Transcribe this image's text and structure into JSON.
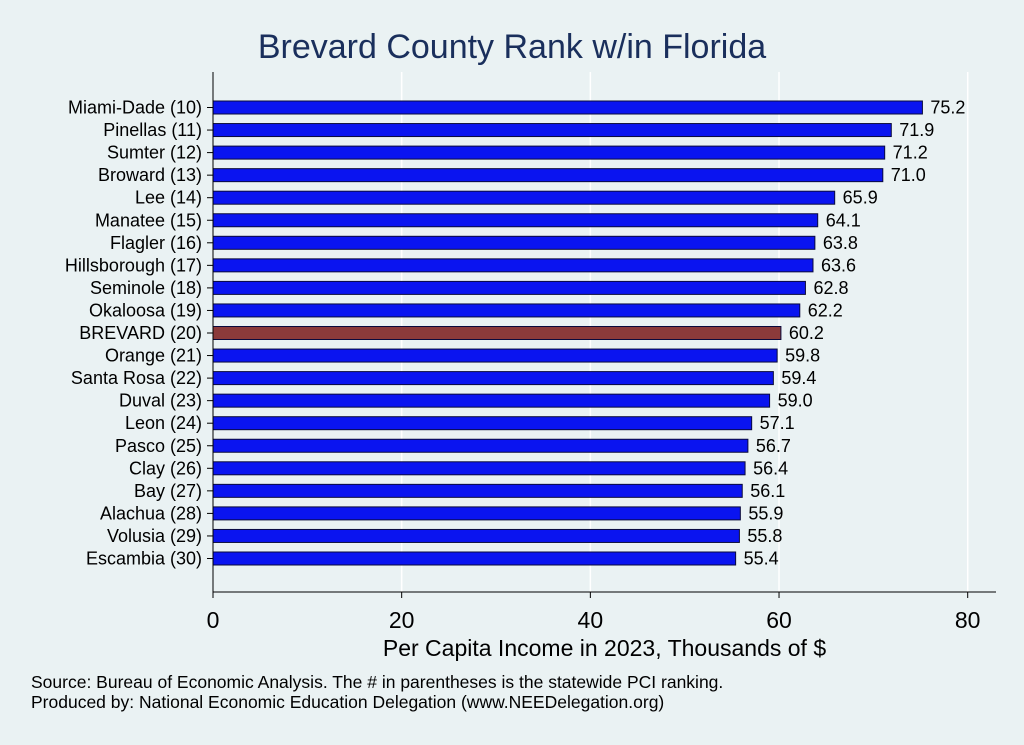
{
  "chart_data": {
    "type": "bar",
    "orientation": "horizontal",
    "title": "Brevard County Rank w/in Florida",
    "xlabel": "Per Capita Income in 2023, Thousands of $",
    "ylabel": "",
    "xlim": [
      0,
      83
    ],
    "xticks": [
      0,
      20,
      40,
      60,
      80
    ],
    "grid": true,
    "categories": [
      "Miami-Dade (10)",
      "Pinellas (11)",
      "Sumter (12)",
      "Broward (13)",
      "Lee (14)",
      "Manatee (15)",
      "Flagler (16)",
      "Hillsborough (17)",
      "Seminole (18)",
      "Okaloosa (19)",
      "BREVARD (20)",
      "Orange (21)",
      "Santa Rosa (22)",
      "Duval (23)",
      "Leon (24)",
      "Pasco (25)",
      "Clay (26)",
      "Bay (27)",
      "Alachua (28)",
      "Volusia (29)",
      "Escambia (30)"
    ],
    "values": [
      75.2,
      71.9,
      71.2,
      71.0,
      65.9,
      64.1,
      63.8,
      63.6,
      62.8,
      62.2,
      60.2,
      59.8,
      59.4,
      59.0,
      57.1,
      56.7,
      56.4,
      56.1,
      55.9,
      55.8,
      55.4
    ],
    "value_labels": [
      "75.2",
      "71.9",
      "71.2",
      "71.0",
      "65.9",
      "64.1",
      "63.8",
      "63.6",
      "62.8",
      "62.2",
      "60.2",
      "59.8",
      "59.4",
      "59.0",
      "57.1",
      "56.7",
      "56.4",
      "56.1",
      "55.9",
      "55.8",
      "55.4"
    ],
    "highlight_index": 10,
    "colors": {
      "bar": "#0a14f0",
      "highlight": "#8b3a3a",
      "bar_edge": "#0a0a3c",
      "grid": "#ffffff",
      "plot_bg": "#eaf2f3"
    }
  },
  "footer": {
    "source": "Source: Bureau of Economic Analysis. The # in parentheses is the statewide PCI ranking.",
    "producer": "Produced by: National Economic Education Delegation (www.NEEDelegation.org)"
  }
}
